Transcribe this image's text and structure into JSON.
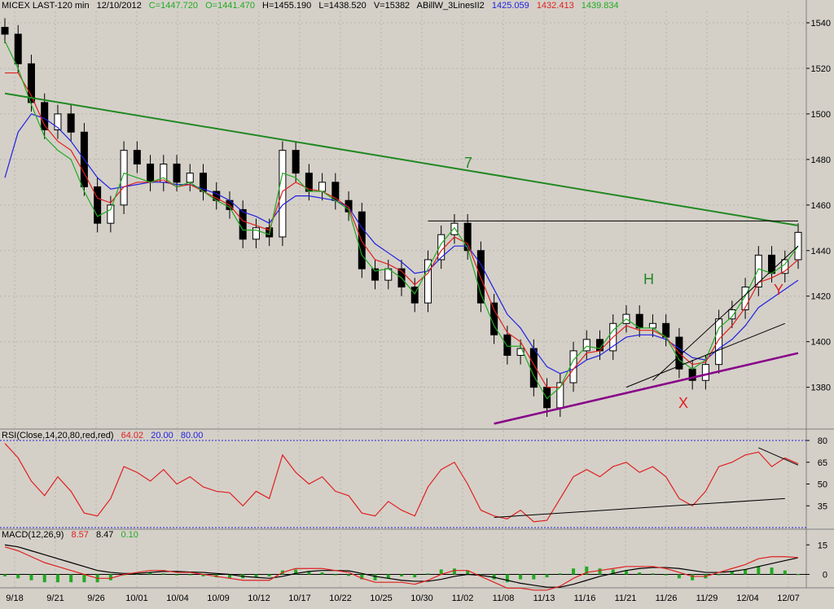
{
  "header": {
    "symbol": "MICEX LAST-120 min",
    "date": "12/10/2012",
    "close": "C=1447.720",
    "open": "O=1441.470",
    "high": "H=1455.190",
    "low": "L=1438.520",
    "volume": "V=15382",
    "indicator": "ABillW_3LinesII2",
    "line1": "1425.059",
    "line2": "1432.413",
    "line3": "1439.834"
  },
  "rsi_header": {
    "label": "RSI(Close,14,20,80,red,red)",
    "value": "64.02",
    "low": "20.00",
    "high": "80.00"
  },
  "macd_header": {
    "label": "MACD(12,26,9)",
    "macd": "8.57",
    "signal": "8.47",
    "hist": "0.10"
  },
  "annotations": {
    "wave7": "7",
    "H": "H",
    "X": "X",
    "Y": "Y"
  },
  "colors": {
    "background": "#d4d0c8",
    "up": "#000000",
    "green": "#22aa22",
    "red": "#e02020",
    "blue": "#2020e0",
    "trend": "#228822",
    "purple": "#880088"
  },
  "chart_data": {
    "type": "line",
    "price_axis": {
      "ticks": [
        1540,
        1520,
        1500,
        1480,
        1460,
        1440,
        1420,
        1400,
        1380
      ],
      "ylim": [
        1362,
        1545
      ]
    },
    "rsi_axis": {
      "ticks": [
        80,
        65,
        50,
        35
      ],
      "ylim": [
        20,
        80
      ],
      "levels": [
        20,
        80
      ]
    },
    "macd_axis": {
      "ticks": [
        15,
        0
      ],
      "ylim": [
        -6,
        18
      ]
    },
    "x_ticks": [
      "9/18",
      "9/21",
      "9/26",
      "10/01",
      "10/04",
      "10/09",
      "10/12",
      "10/17",
      "10/22",
      "10/25",
      "10/30",
      "11/02",
      "11/08",
      "11/13",
      "11/16",
      "11/21",
      "11/26",
      "11/29",
      "12/04",
      "12/07"
    ],
    "price_close": [
      1535,
      1522,
      1505,
      1493,
      1500,
      1492,
      1468,
      1452,
      1460,
      1484,
      1478,
      1470,
      1478,
      1470,
      1474,
      1466,
      1462,
      1458,
      1445,
      1450,
      1446,
      1484,
      1474,
      1466,
      1470,
      1462,
      1457,
      1432,
      1427,
      1432,
      1424,
      1417,
      1436,
      1447,
      1452,
      1440,
      1417,
      1403,
      1394,
      1397,
      1380,
      1371,
      1382,
      1396,
      1401,
      1396,
      1408,
      1412,
      1406,
      1408,
      1402,
      1388,
      1383,
      1390,
      1410,
      1414,
      1424,
      1438,
      1430,
      1436,
      1448
    ],
    "ma_green": [
      1532,
      1520,
      1504,
      1490,
      1484,
      1480,
      1466,
      1455,
      1458,
      1474,
      1472,
      1470,
      1472,
      1468,
      1470,
      1466,
      1462,
      1459,
      1449,
      1449,
      1447,
      1474,
      1472,
      1466,
      1466,
      1462,
      1458,
      1438,
      1431,
      1432,
      1428,
      1421,
      1432,
      1443,
      1450,
      1441,
      1421,
      1407,
      1398,
      1398,
      1385,
      1375,
      1380,
      1392,
      1398,
      1397,
      1405,
      1410,
      1406,
      1406,
      1402,
      1392,
      1388,
      1392,
      1406,
      1411,
      1420,
      1432,
      1430,
      1434,
      1442
    ],
    "ma_red": [
      1518,
      1518,
      1508,
      1495,
      1488,
      1484,
      1474,
      1463,
      1461,
      1468,
      1470,
      1470,
      1471,
      1468,
      1469,
      1466,
      1463,
      1460,
      1453,
      1451,
      1449,
      1466,
      1470,
      1467,
      1466,
      1463,
      1459,
      1444,
      1436,
      1434,
      1431,
      1425,
      1430,
      1440,
      1446,
      1443,
      1428,
      1414,
      1404,
      1400,
      1390,
      1380,
      1380,
      1388,
      1395,
      1396,
      1402,
      1407,
      1405,
      1405,
      1402,
      1395,
      1390,
      1391,
      1401,
      1407,
      1415,
      1426,
      1428,
      1431,
      1436
    ],
    "ma_blue": [
      1472,
      1492,
      1500,
      1498,
      1494,
      1488,
      1480,
      1472,
      1467,
      1468,
      1469,
      1470,
      1470,
      1469,
      1469,
      1467,
      1465,
      1462,
      1457,
      1455,
      1452,
      1460,
      1464,
      1464,
      1463,
      1462,
      1459,
      1450,
      1443,
      1439,
      1435,
      1430,
      1431,
      1437,
      1442,
      1442,
      1434,
      1423,
      1412,
      1406,
      1397,
      1389,
      1386,
      1388,
      1392,
      1394,
      1398,
      1402,
      1403,
      1403,
      1401,
      1397,
      1393,
      1392,
      1397,
      1401,
      1407,
      1415,
      1419,
      1423,
      1427
    ],
    "rsi": [
      78,
      68,
      52,
      42,
      55,
      45,
      30,
      28,
      40,
      62,
      58,
      52,
      60,
      50,
      55,
      48,
      45,
      44,
      35,
      45,
      40,
      70,
      58,
      50,
      55,
      45,
      42,
      30,
      28,
      38,
      32,
      28,
      48,
      60,
      65,
      50,
      32,
      28,
      26,
      32,
      24,
      25,
      40,
      55,
      60,
      55,
      62,
      65,
      58,
      62,
      55,
      40,
      35,
      45,
      62,
      65,
      70,
      72,
      62,
      68,
      64
    ],
    "macd": [
      14,
      12,
      9,
      6,
      4,
      2,
      0,
      -2,
      -2,
      0,
      1,
      2,
      2,
      1,
      1,
      0,
      -1,
      -2,
      -3,
      -3,
      -3,
      1,
      3,
      3,
      3,
      2,
      1,
      -2,
      -4,
      -4,
      -4,
      -5,
      -3,
      0,
      2,
      2,
      -1,
      -4,
      -7,
      -7,
      -8,
      -8,
      -6,
      -2,
      1,
      2,
      3,
      4,
      4,
      4,
      3,
      1,
      -1,
      -1,
      1,
      3,
      5,
      8,
      9,
      9,
      8.57
    ],
    "signal": [
      15,
      14,
      12,
      10,
      8,
      6,
      4,
      2,
      1,
      0.5,
      0.5,
      1,
      1.5,
      1.5,
      1.2,
      1,
      0.5,
      0,
      -1,
      -1.5,
      -2,
      -1,
      0.5,
      1.5,
      2,
      2,
      1.8,
      0.5,
      -1,
      -2,
      -3,
      -3.5,
      -3.5,
      -2.5,
      -1,
      0,
      -0.5,
      -1.5,
      -3,
      -4.5,
      -5.5,
      -6.5,
      -6.5,
      -5,
      -3,
      -1,
      0.5,
      2,
      3,
      3.5,
      3.5,
      3,
      2,
      1,
      1,
      1.5,
      2.5,
      4,
      5.5,
      7,
      8.47
    ],
    "trendlines": [
      {
        "name": "7",
        "from": [
          0,
          1509
        ],
        "to": [
          60,
          1451
        ]
      },
      {
        "name": "support",
        "from": [
          37,
          1364
        ],
        "to": [
          60,
          1395
        ]
      },
      {
        "name": "lower-black",
        "from": [
          47,
          1380
        ],
        "to": [
          59,
          1408
        ]
      },
      {
        "name": "upper-black",
        "from": [
          49,
          1383
        ],
        "to": [
          60,
          1442
        ]
      },
      {
        "name": "top-horizontal",
        "from": [
          32,
          1453
        ],
        "to": [
          60,
          1453
        ]
      }
    ]
  }
}
